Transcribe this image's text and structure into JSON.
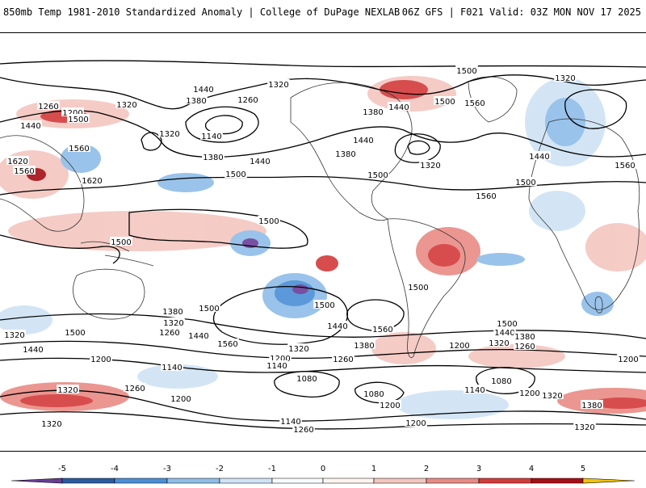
{
  "header": {
    "title_left": "850mb Temp 1981-2010 Standardized Anomaly | College of DuPage NEXLAB",
    "title_right": "06Z GFS | F021 Valid: 03Z MON NOV 17 2025"
  },
  "contours": [
    {
      "label": "1500",
      "lx": 578,
      "ly": 86
    },
    {
      "label": "1320",
      "lx": 700,
      "ly": 95
    },
    {
      "label": "1440",
      "lx": 252,
      "ly": 109
    },
    {
      "label": "1320",
      "lx": 345,
      "ly": 103
    },
    {
      "label": "1380",
      "lx": 243,
      "ly": 123
    },
    {
      "label": "1260",
      "lx": 307,
      "ly": 122
    },
    {
      "label": "1440",
      "lx": 494,
      "ly": 131
    },
    {
      "label": "1500",
      "lx": 551,
      "ly": 124
    },
    {
      "label": "1560",
      "lx": 588,
      "ly": 126
    },
    {
      "label": "1380",
      "lx": 462,
      "ly": 137
    },
    {
      "label": "1260",
      "lx": 60,
      "ly": 130
    },
    {
      "label": "1320",
      "lx": 157,
      "ly": 128
    },
    {
      "label": "1200",
      "lx": 90,
      "ly": 138
    },
    {
      "label": "1500",
      "lx": 97,
      "ly": 146
    },
    {
      "label": "1440",
      "lx": 38,
      "ly": 154
    },
    {
      "label": "1320",
      "lx": 210,
      "ly": 164
    },
    {
      "label": "1140",
      "lx": 262,
      "ly": 167
    },
    {
      "label": "1440",
      "lx": 450,
      "ly": 172
    },
    {
      "label": "1560",
      "lx": 98,
      "ly": 182
    },
    {
      "label": "1380",
      "lx": 428,
      "ly": 189
    },
    {
      "label": "1380",
      "lx": 264,
      "ly": 193
    },
    {
      "label": "1440",
      "lx": 322,
      "ly": 198
    },
    {
      "label": "1440",
      "lx": 668,
      "ly": 192
    },
    {
      "label": "1320",
      "lx": 533,
      "ly": 203
    },
    {
      "label": "1560",
      "lx": 774,
      "ly": 203
    },
    {
      "label": "1620",
      "lx": 22,
      "ly": 198
    },
    {
      "label": "1560",
      "lx": 30,
      "ly": 210
    },
    {
      "label": "1500",
      "lx": 292,
      "ly": 214
    },
    {
      "label": "1500",
      "lx": 468,
      "ly": 215
    },
    {
      "label": "1620",
      "lx": 114,
      "ly": 222
    },
    {
      "label": "1500",
      "lx": 651,
      "ly": 224
    },
    {
      "label": "1560",
      "lx": 602,
      "ly": 241
    },
    {
      "label": "1500",
      "lx": 333,
      "ly": 272
    },
    {
      "label": "1500",
      "lx": 150,
      "ly": 298
    },
    {
      "label": "1500",
      "lx": 518,
      "ly": 354
    },
    {
      "label": "1500",
      "lx": 259,
      "ly": 380
    },
    {
      "label": "1500",
      "lx": 402,
      "ly": 376
    },
    {
      "label": "1380",
      "lx": 214,
      "ly": 384
    },
    {
      "label": "1320",
      "lx": 215,
      "ly": 398
    },
    {
      "label": "1500",
      "lx": 628,
      "ly": 399
    },
    {
      "label": "1260",
      "lx": 210,
      "ly": 410
    },
    {
      "label": "1440",
      "lx": 246,
      "ly": 414
    },
    {
      "label": "1440",
      "lx": 418,
      "ly": 402
    },
    {
      "label": "1560",
      "lx": 474,
      "ly": 406
    },
    {
      "label": "1440",
      "lx": 625,
      "ly": 410
    },
    {
      "label": "1380",
      "lx": 650,
      "ly": 415
    },
    {
      "label": "1320",
      "lx": 18,
      "ly": 413
    },
    {
      "label": "1500",
      "lx": 93,
      "ly": 410
    },
    {
      "label": "1560",
      "lx": 282,
      "ly": 424
    },
    {
      "label": "1380",
      "lx": 451,
      "ly": 426
    },
    {
      "label": "1320",
      "lx": 618,
      "ly": 423
    },
    {
      "label": "1260",
      "lx": 650,
      "ly": 427
    },
    {
      "label": "1320",
      "lx": 370,
      "ly": 430
    },
    {
      "label": "1200",
      "lx": 569,
      "ly": 426
    },
    {
      "label": "1440",
      "lx": 41,
      "ly": 431
    },
    {
      "label": "1200",
      "lx": 347,
      "ly": 442
    },
    {
      "label": "1260",
      "lx": 425,
      "ly": 443
    },
    {
      "label": "1200",
      "lx": 125,
      "ly": 443
    },
    {
      "label": "1200",
      "lx": 778,
      "ly": 443
    },
    {
      "label": "1140",
      "lx": 343,
      "ly": 451
    },
    {
      "label": "1140",
      "lx": 213,
      "ly": 453
    },
    {
      "label": "1080",
      "lx": 380,
      "ly": 467
    },
    {
      "label": "1080",
      "lx": 621,
      "ly": 470
    },
    {
      "label": "1260",
      "lx": 167,
      "ly": 479
    },
    {
      "label": "1320",
      "lx": 84,
      "ly": 481
    },
    {
      "label": "1140",
      "lx": 588,
      "ly": 481
    },
    {
      "label": "1080",
      "lx": 463,
      "ly": 486
    },
    {
      "label": "1200",
      "lx": 656,
      "ly": 485
    },
    {
      "label": "1320",
      "lx": 684,
      "ly": 488
    },
    {
      "label": "1200",
      "lx": 224,
      "ly": 492
    },
    {
      "label": "1200",
      "lx": 483,
      "ly": 500
    },
    {
      "label": "1380",
      "lx": 733,
      "ly": 500
    },
    {
      "label": "1140",
      "lx": 360,
      "ly": 520
    },
    {
      "label": "1200",
      "lx": 515,
      "ly": 522
    },
    {
      "label": "1320",
      "lx": 64,
      "ly": 523
    },
    {
      "label": "1260",
      "lx": 376,
      "ly": 530
    },
    {
      "label": "1320",
      "lx": 724,
      "ly": 527
    }
  ],
  "colorbar": {
    "ticks": [
      "-5",
      "-4",
      "-3",
      "-2",
      "-1",
      "0",
      "1",
      "2",
      "3",
      "4",
      "5"
    ],
    "colors": [
      "#6a3d9a",
      "#2c5aa0",
      "#4a8fd6",
      "#8fbde8",
      "#cfe3f5",
      "#f7fbff",
      "#fff5f0",
      "#f4c6c0",
      "#e98b85",
      "#d33a3a",
      "#a50f15",
      "#f5c400"
    ]
  }
}
